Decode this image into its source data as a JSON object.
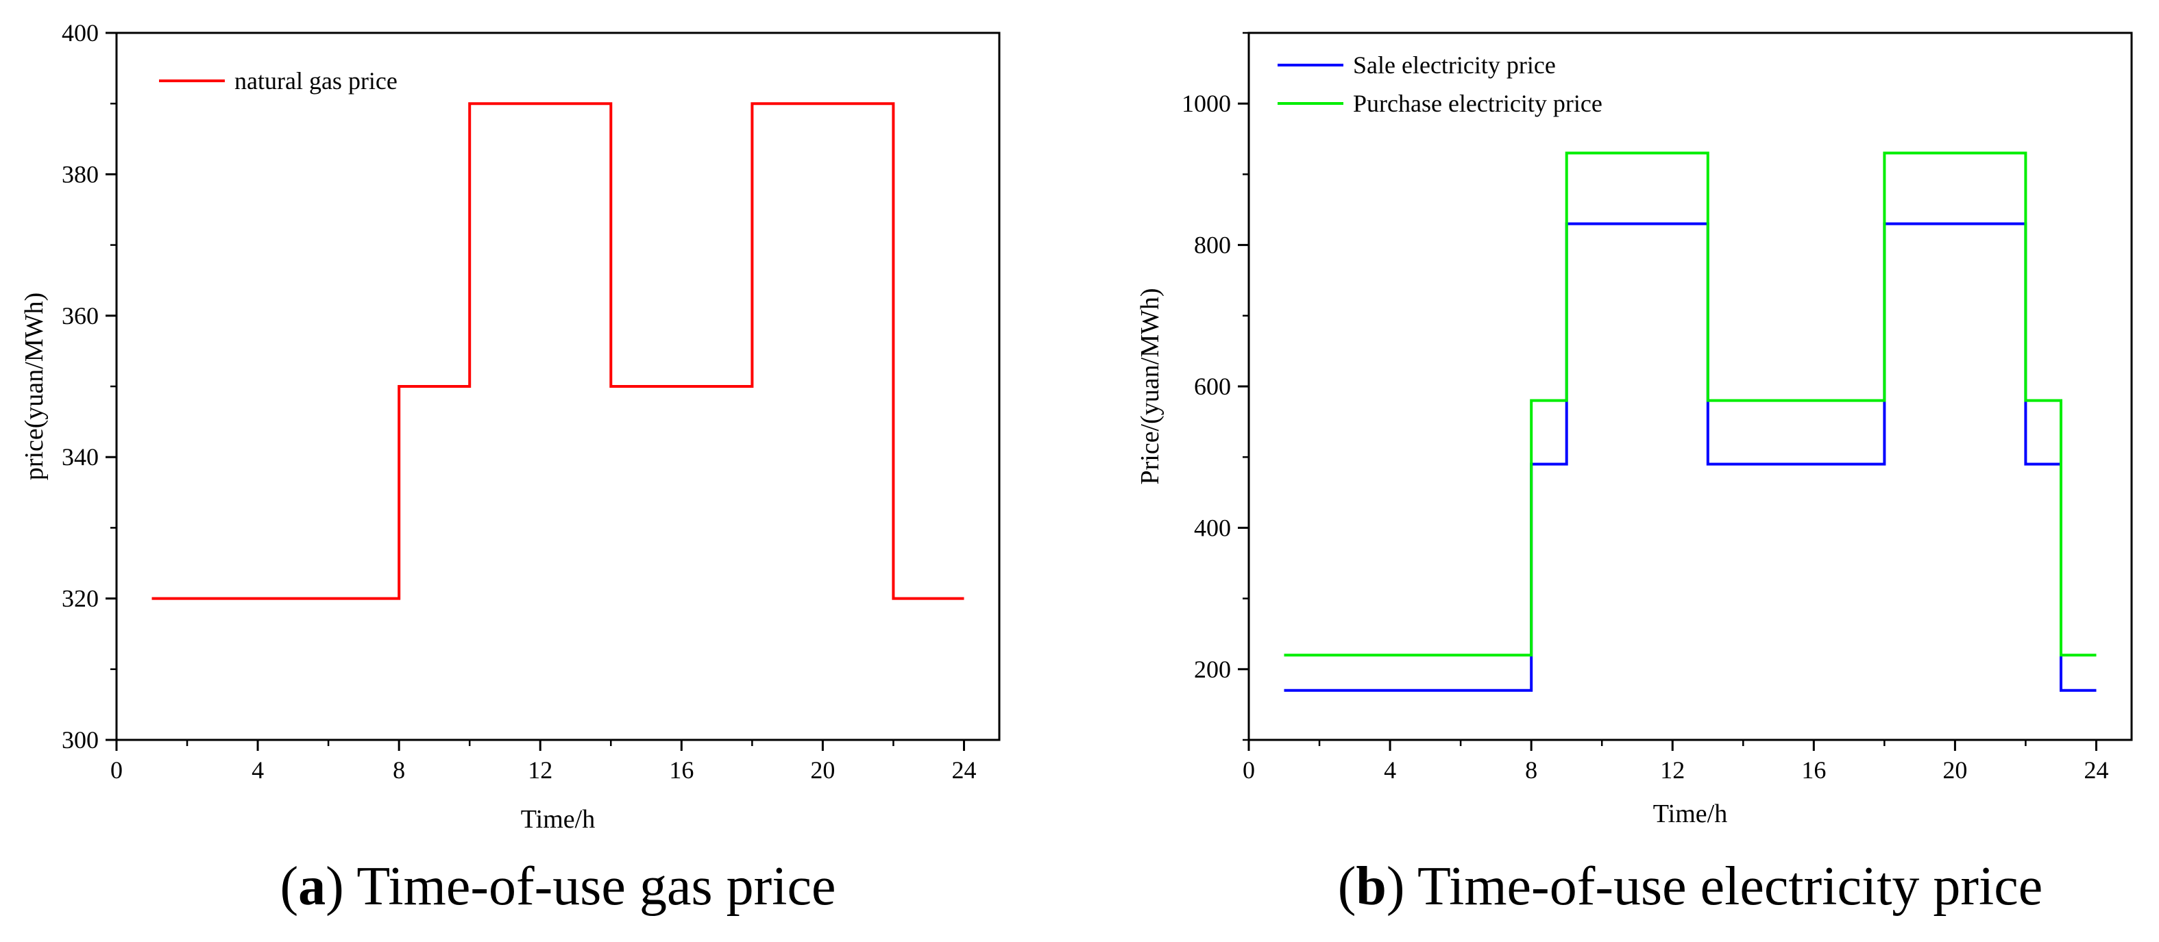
{
  "chart_data": [
    {
      "id": "a",
      "type": "line",
      "step": true,
      "title": "",
      "caption_letter": "a",
      "caption_text": "Time-of-use gas price",
      "xlabel": "Time/h",
      "ylabel": "price(yuan/MWh)",
      "xlim": [
        0,
        25
      ],
      "ylim": [
        300,
        400
      ],
      "xticks": [
        0,
        4,
        8,
        12,
        16,
        20,
        24
      ],
      "xtick_labels": [
        "0",
        "4",
        "8",
        "12",
        "16",
        "20",
        "24"
      ],
      "yticks": [
        300,
        320,
        340,
        360,
        380,
        400
      ],
      "ytick_labels": [
        "300",
        "320",
        "340",
        "360",
        "380",
        "400"
      ],
      "grid": false,
      "legend_position": "top-left",
      "series": [
        {
          "name": "natural gas price",
          "color": "#ff0000",
          "x": [
            1,
            8,
            8,
            10,
            10,
            14,
            14,
            18,
            18,
            22,
            22,
            24
          ],
          "y": [
            320,
            320,
            350,
            350,
            390,
            390,
            350,
            350,
            390,
            390,
            320,
            320
          ]
        }
      ]
    },
    {
      "id": "b",
      "type": "line",
      "step": true,
      "title": "",
      "caption_letter": "b",
      "caption_text": "Time-of-use electricity price",
      "xlabel": "Time/h",
      "ylabel": "Price/(yuan/MWh)",
      "xlim": [
        0,
        25
      ],
      "ylim": [
        100,
        1100
      ],
      "xticks": [
        0,
        4,
        8,
        12,
        16,
        20,
        24
      ],
      "xtick_labels": [
        "0",
        "4",
        "8",
        "12",
        "16",
        "20",
        "24"
      ],
      "yticks": [
        200,
        400,
        600,
        800,
        1000
      ],
      "ytick_labels": [
        "200",
        "400",
        "600",
        "800",
        "1000"
      ],
      "grid": false,
      "legend_position": "top-left",
      "series": [
        {
          "name": "Sale electricity price",
          "color": "#0000ff",
          "x": [
            1,
            8,
            8,
            9,
            9,
            13,
            13,
            18,
            18,
            22,
            22,
            23,
            23,
            24
          ],
          "y": [
            170,
            170,
            490,
            490,
            830,
            830,
            490,
            490,
            830,
            830,
            490,
            490,
            170,
            170
          ]
        },
        {
          "name": "Purchase electricity price",
          "color": "#00ee00",
          "x": [
            1,
            8,
            8,
            9,
            9,
            13,
            13,
            18,
            18,
            22,
            22,
            23,
            23,
            24
          ],
          "y": [
            220,
            220,
            580,
            580,
            930,
            930,
            580,
            580,
            930,
            930,
            580,
            580,
            220,
            220
          ]
        }
      ]
    }
  ]
}
